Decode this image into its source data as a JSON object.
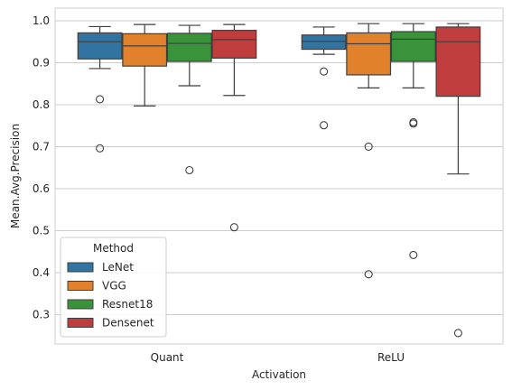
{
  "chart_data": {
    "type": "boxplot",
    "title": "",
    "xlabel": "Activation",
    "ylabel": "Mean.Avg.Precision",
    "categories": [
      "Quant",
      "ReLU"
    ],
    "ylim": [
      0.23,
      1.03
    ],
    "yticks": [
      0.3,
      0.4,
      0.5,
      0.6,
      0.7,
      0.8,
      0.9,
      1.0
    ],
    "ytick_labels": [
      "0.3",
      "0.4",
      "0.5",
      "0.6",
      "0.7",
      "0.8",
      "0.9",
      "1.0"
    ],
    "grid": "horizontal",
    "legend": {
      "title": "Method",
      "position": "lower-left"
    },
    "series": [
      {
        "name": "LeNet",
        "color": "#3274a1",
        "boxes": [
          {
            "category": "Quant",
            "whisker_low": 0.886,
            "q1": 0.909,
            "median": 0.95,
            "q3": 0.971,
            "whisker_high": 0.986,
            "outliers": [
              0.813,
              0.696
            ]
          },
          {
            "category": "ReLU",
            "whisker_low": 0.92,
            "q1": 0.932,
            "median": 0.951,
            "q3": 0.966,
            "whisker_high": 0.985,
            "outliers": [
              0.879,
              0.751
            ]
          }
        ]
      },
      {
        "name": "VGG",
        "color": "#e1812c",
        "boxes": [
          {
            "category": "Quant",
            "whisker_low": 0.797,
            "q1": 0.892,
            "median": 0.94,
            "q3": 0.969,
            "whisker_high": 0.991,
            "outliers": []
          },
          {
            "category": "ReLU",
            "whisker_low": 0.84,
            "q1": 0.871,
            "median": 0.945,
            "q3": 0.971,
            "whisker_high": 0.993,
            "outliers": [
              0.7,
              0.396
            ]
          }
        ]
      },
      {
        "name": "Resnet18",
        "color": "#3a923a",
        "boxes": [
          {
            "category": "Quant",
            "whisker_low": 0.845,
            "q1": 0.903,
            "median": 0.946,
            "q3": 0.97,
            "whisker_high": 0.989,
            "outliers": [
              0.644
            ]
          },
          {
            "category": "ReLU",
            "whisker_low": 0.84,
            "q1": 0.903,
            "median": 0.956,
            "q3": 0.974,
            "whisker_high": 0.993,
            "outliers": [
              0.758,
              0.755,
              0.442
            ]
          }
        ]
      },
      {
        "name": "Densenet",
        "color": "#c03d3e",
        "boxes": [
          {
            "category": "Quant",
            "whisker_low": 0.822,
            "q1": 0.911,
            "median": 0.955,
            "q3": 0.977,
            "whisker_high": 0.991,
            "outliers": [
              0.508
            ]
          },
          {
            "category": "ReLU",
            "whisker_low": 0.635,
            "q1": 0.82,
            "median": 0.95,
            "q3": 0.985,
            "whisker_high": 0.993,
            "outliers": [
              0.256
            ]
          }
        ]
      }
    ]
  }
}
